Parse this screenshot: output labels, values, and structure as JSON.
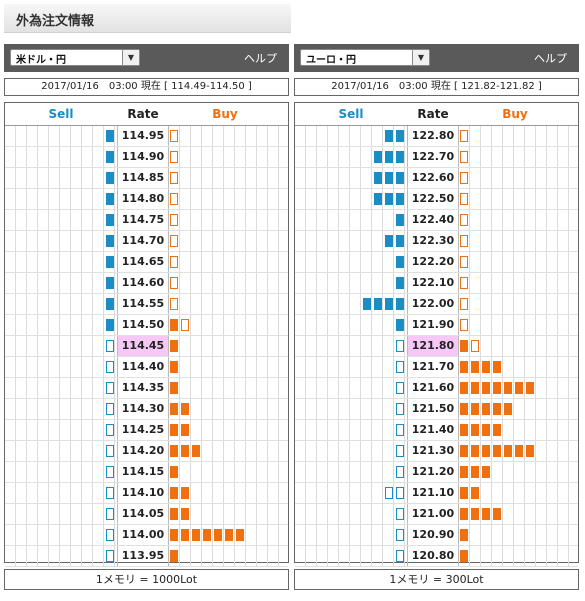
{
  "page_title": "外為注文情報",
  "labels": {
    "help": "ヘルプ",
    "sell": "Sell",
    "rate": "Rate",
    "buy": "Buy"
  },
  "colors": {
    "sell": "#1a8ec4",
    "buy": "#f07010",
    "current_rate_bg": "#f5c8f5",
    "header_bg": "#5a5a5a"
  },
  "panels": [
    {
      "pair": "米ドル・円",
      "info": "2017/01/16　03:00 現在 [ 114.49-114.50 ]",
      "footer": "1メモリ = 1000Lot",
      "rows": [
        {
          "rate": "114.95",
          "sell": 1,
          "buy": 1,
          "current": false,
          "sell_filled": true,
          "buy_filled": false
        },
        {
          "rate": "114.90",
          "sell": 1,
          "buy": 1,
          "current": false,
          "sell_filled": true,
          "buy_filled": false
        },
        {
          "rate": "114.85",
          "sell": 1,
          "buy": 1,
          "current": false,
          "sell_filled": true,
          "buy_filled": false
        },
        {
          "rate": "114.80",
          "sell": 1,
          "buy": 1,
          "current": false,
          "sell_filled": true,
          "buy_filled": false
        },
        {
          "rate": "114.75",
          "sell": 1,
          "buy": 1,
          "current": false,
          "sell_filled": true,
          "buy_filled": false
        },
        {
          "rate": "114.70",
          "sell": 1,
          "buy": 1,
          "current": false,
          "sell_filled": true,
          "buy_filled": false
        },
        {
          "rate": "114.65",
          "sell": 1,
          "buy": 1,
          "current": false,
          "sell_filled": true,
          "buy_filled": false
        },
        {
          "rate": "114.60",
          "sell": 1,
          "buy": 1,
          "current": false,
          "sell_filled": true,
          "buy_filled": false
        },
        {
          "rate": "114.55",
          "sell": 1,
          "buy": 1,
          "current": false,
          "sell_filled": true,
          "buy_filled": false
        },
        {
          "rate": "114.50",
          "sell": 1,
          "buy": 2,
          "current": false,
          "sell_filled": true,
          "buy_filled": true,
          "buy_last_outline": true
        },
        {
          "rate": "114.45",
          "sell": 1,
          "buy": 1,
          "current": true,
          "sell_filled": false,
          "buy_filled": true
        },
        {
          "rate": "114.40",
          "sell": 1,
          "buy": 1,
          "current": false,
          "sell_filled": false,
          "buy_filled": true
        },
        {
          "rate": "114.35",
          "sell": 1,
          "buy": 1,
          "current": false,
          "sell_filled": false,
          "buy_filled": true
        },
        {
          "rate": "114.30",
          "sell": 1,
          "buy": 2,
          "current": false,
          "sell_filled": false,
          "buy_filled": true
        },
        {
          "rate": "114.25",
          "sell": 1,
          "buy": 2,
          "current": false,
          "sell_filled": false,
          "buy_filled": true
        },
        {
          "rate": "114.20",
          "sell": 1,
          "buy": 3,
          "current": false,
          "sell_filled": false,
          "buy_filled": true
        },
        {
          "rate": "114.15",
          "sell": 1,
          "buy": 1,
          "current": false,
          "sell_filled": false,
          "buy_filled": true
        },
        {
          "rate": "114.10",
          "sell": 1,
          "buy": 2,
          "current": false,
          "sell_filled": false,
          "buy_filled": true
        },
        {
          "rate": "114.05",
          "sell": 1,
          "buy": 2,
          "current": false,
          "sell_filled": false,
          "buy_filled": true
        },
        {
          "rate": "114.00",
          "sell": 1,
          "buy": 7,
          "current": false,
          "sell_filled": false,
          "buy_filled": true
        },
        {
          "rate": "113.95",
          "sell": 1,
          "buy": 1,
          "current": false,
          "sell_filled": false,
          "buy_filled": true
        }
      ]
    },
    {
      "pair": "ユーロ・円",
      "info": "2017/01/16　03:00 現在 [ 121.82-121.82 ]",
      "footer": "1メモリ = 300Lot",
      "rows": [
        {
          "rate": "122.80",
          "sell": 2,
          "buy": 1,
          "current": false,
          "sell_filled": true,
          "buy_filled": false
        },
        {
          "rate": "122.70",
          "sell": 3,
          "buy": 1,
          "current": false,
          "sell_filled": true,
          "buy_filled": false
        },
        {
          "rate": "122.60",
          "sell": 3,
          "buy": 1,
          "current": false,
          "sell_filled": true,
          "buy_filled": false
        },
        {
          "rate": "122.50",
          "sell": 3,
          "buy": 1,
          "current": false,
          "sell_filled": true,
          "buy_filled": false
        },
        {
          "rate": "122.40",
          "sell": 1,
          "buy": 1,
          "current": false,
          "sell_filled": true,
          "buy_filled": false
        },
        {
          "rate": "122.30",
          "sell": 2,
          "buy": 1,
          "current": false,
          "sell_filled": true,
          "buy_filled": false
        },
        {
          "rate": "122.20",
          "sell": 1,
          "buy": 1,
          "current": false,
          "sell_filled": true,
          "buy_filled": false
        },
        {
          "rate": "122.10",
          "sell": 1,
          "buy": 1,
          "current": false,
          "sell_filled": true,
          "buy_filled": false
        },
        {
          "rate": "122.00",
          "sell": 4,
          "buy": 1,
          "current": false,
          "sell_filled": true,
          "buy_filled": false
        },
        {
          "rate": "121.90",
          "sell": 1,
          "buy": 1,
          "current": false,
          "sell_filled": true,
          "buy_filled": false
        },
        {
          "rate": "121.80",
          "sell": 1,
          "buy": 2,
          "current": true,
          "sell_filled": false,
          "buy_filled": true,
          "buy_last_outline": true
        },
        {
          "rate": "121.70",
          "sell": 1,
          "buy": 4,
          "current": false,
          "sell_filled": false,
          "buy_filled": true
        },
        {
          "rate": "121.60",
          "sell": 1,
          "buy": 7,
          "current": false,
          "sell_filled": false,
          "buy_filled": true
        },
        {
          "rate": "121.50",
          "sell": 1,
          "buy": 5,
          "current": false,
          "sell_filled": false,
          "buy_filled": true
        },
        {
          "rate": "121.40",
          "sell": 1,
          "buy": 4,
          "current": false,
          "sell_filled": false,
          "buy_filled": true
        },
        {
          "rate": "121.30",
          "sell": 1,
          "buy": 7,
          "current": false,
          "sell_filled": false,
          "buy_filled": true
        },
        {
          "rate": "121.20",
          "sell": 1,
          "buy": 3,
          "current": false,
          "sell_filled": false,
          "buy_filled": true
        },
        {
          "rate": "121.10",
          "sell": 2,
          "buy": 2,
          "current": false,
          "sell_filled": false,
          "buy_filled": true
        },
        {
          "rate": "121.00",
          "sell": 1,
          "buy": 4,
          "current": false,
          "sell_filled": false,
          "buy_filled": true
        },
        {
          "rate": "120.90",
          "sell": 1,
          "buy": 1,
          "current": false,
          "sell_filled": false,
          "buy_filled": true
        },
        {
          "rate": "120.80",
          "sell": 1,
          "buy": 1,
          "current": false,
          "sell_filled": false,
          "buy_filled": true
        }
      ]
    }
  ]
}
